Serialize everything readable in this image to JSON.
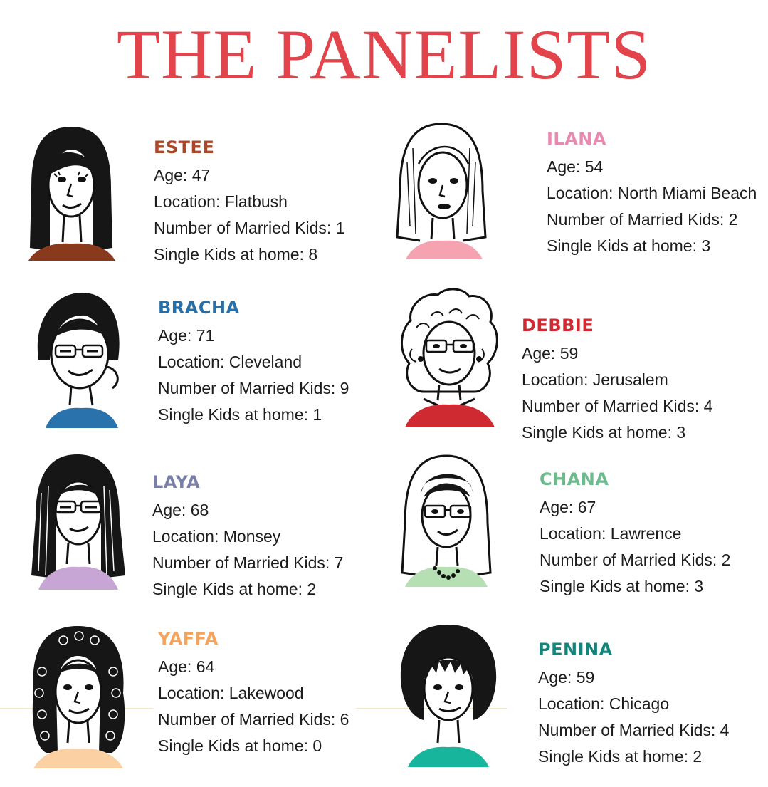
{
  "title": "THE PANELISTS",
  "colors": {
    "title": "#e3434b",
    "estee": "#a9472a",
    "ilana": "#e98ab0",
    "bracha": "#2a6ea6",
    "debbie": "#cf2a31",
    "laya": "#7a7fa8",
    "chana": "#6dbb8c",
    "yaffa": "#f4a45e",
    "penina": "#12857a"
  },
  "panelists": {
    "estee": {
      "name": "ESTEE",
      "age": "Age: 47",
      "location": "Location: Flatbush",
      "married": "Number of Married Kids: 1",
      "single": "Single Kids at home: 8"
    },
    "ilana": {
      "name": "ILANA",
      "age": "Age:  54",
      "location": "Location: North Miami Beach",
      "married": "Number of Married Kids: 2",
      "single": "Single Kids at home: 3"
    },
    "bracha": {
      "name": "BRACHA",
      "age": "Age: 71",
      "location": "Location: Cleveland",
      "married": "Number of Married Kids: 9",
      "single": "Single Kids at home: 1"
    },
    "debbie": {
      "name": "DEBBIE",
      "age": "Age: 59",
      "location": "Location: Jerusalem",
      "married": "Number of Married Kids: 4",
      "single": "Single Kids at home: 3"
    },
    "laya": {
      "name": "LAYA",
      "age": "Age: 68",
      "location": "Location: Monsey",
      "married": "Number of Married Kids: 7",
      "single": "Single Kids at home: 2"
    },
    "chana": {
      "name": "CHANA",
      "age": "Age:  67",
      "location": "Location: Lawrence",
      "married": "Number of Married Kids: 2",
      "single": "Single Kids at home: 3"
    },
    "yaffa": {
      "name": "YAFFA",
      "age": "Age:  64",
      "location": "Location: Lakewood",
      "married": "Number of Married Kids: 6",
      "single": "Single Kids at home: 0"
    },
    "penina": {
      "name": "PENINA",
      "age": "Age: 59",
      "location": "Location: Chicago",
      "married": "Number of Married Kids: 4",
      "single": "Single Kids at home: 2"
    }
  }
}
